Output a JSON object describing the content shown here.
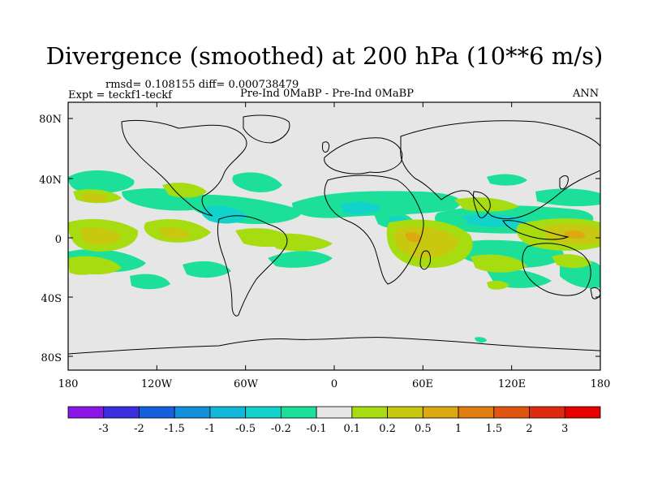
{
  "title": "Divergence (smoothed) at 200 hPa (10**6 m/s)",
  "rmsd_line": "rmsd= 0.108155 diff= 0.000738479",
  "expt_line": "Expt = teckf1-teckf",
  "cases_line": "Pre-Ind 0MaBP - Pre-Ind 0MaBP",
  "season": "ANN",
  "lat_labels": [
    "80N",
    "40N",
    "0",
    "40S",
    "80S"
  ],
  "lon_labels": [
    "180",
    "120W",
    "60W",
    "0",
    "60E",
    "120E",
    "180"
  ],
  "colorbar": {
    "labels": [
      "-3",
      "-2",
      "-1.5",
      "-1",
      "-0.5",
      "-0.2",
      "-0.1",
      "0.1",
      "0.2",
      "0.5",
      "1",
      "1.5",
      "2",
      "3"
    ],
    "colors": [
      "#8a17e8",
      "#3c2ee0",
      "#1560dc",
      "#1290dc",
      "#12b8dc",
      "#12d2cc",
      "#1ce09a",
      "#e6e6e6",
      "#a6dc10",
      "#c8c810",
      "#dcaa10",
      "#e07d10",
      "#e05510",
      "#e02a10",
      "#e60000"
    ]
  },
  "colors": {
    "land_bg": "#e6e6e6",
    "green": "#1ce09a",
    "cyan": "#12d2cc",
    "lime": "#a6dc10",
    "olive": "#c8c810",
    "orange": "#dcaa10"
  }
}
